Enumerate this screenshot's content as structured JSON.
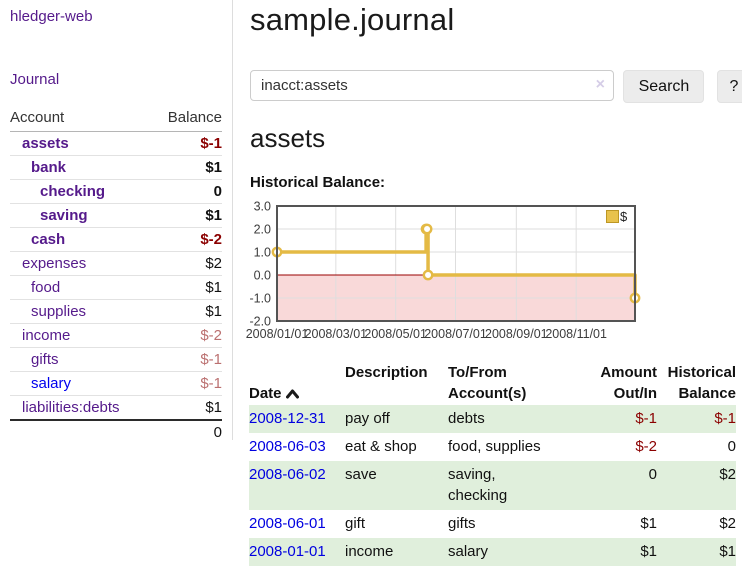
{
  "sidebar": {
    "brand": "hledger-web",
    "nav": {
      "journal": "Journal"
    },
    "accounts": {
      "headers": {
        "account": "Account",
        "balance": "Balance"
      },
      "rows": [
        {
          "name": "assets",
          "indent": 1,
          "bold": true,
          "balance": "$-1",
          "balance_style": "neg-strong",
          "link_style": "visited"
        },
        {
          "name": "bank",
          "indent": 2,
          "bold": true,
          "balance": "$1",
          "balance_style": "plain",
          "link_style": "visited"
        },
        {
          "name": "checking",
          "indent": 3,
          "bold": true,
          "balance": "0",
          "balance_style": "plain",
          "link_style": "visited"
        },
        {
          "name": "saving",
          "indent": 3,
          "bold": true,
          "balance": "$1",
          "balance_style": "plain",
          "link_style": "visited"
        },
        {
          "name": "cash",
          "indent": 2,
          "bold": true,
          "balance": "$-2",
          "balance_style": "neg-strong",
          "link_style": "visited"
        },
        {
          "name": "expenses",
          "indent": 1,
          "bold": false,
          "balance": "$2",
          "balance_style": "plain",
          "link_style": "visited"
        },
        {
          "name": "food",
          "indent": 2,
          "bold": false,
          "balance": "$1",
          "balance_style": "plain",
          "link_style": "visited"
        },
        {
          "name": "supplies",
          "indent": 2,
          "bold": false,
          "balance": "$1",
          "balance_style": "plain",
          "link_style": "visited"
        },
        {
          "name": "income",
          "indent": 1,
          "bold": false,
          "balance": "$-2",
          "balance_style": "neg-soft",
          "link_style": "visited"
        },
        {
          "name": "gifts",
          "indent": 2,
          "bold": false,
          "balance": "$-1",
          "balance_style": "neg-soft",
          "link_style": "visited"
        },
        {
          "name": "salary",
          "indent": 2,
          "bold": false,
          "balance": "$-1",
          "balance_style": "neg-soft",
          "link_style": "unvisited"
        },
        {
          "name": "liabilities:debts",
          "indent": 1,
          "bold": false,
          "balance": "$1",
          "balance_style": "plain",
          "link_style": "visited"
        }
      ],
      "total": "0"
    }
  },
  "main": {
    "title": "sample.journal",
    "search": {
      "value": "inacct:assets",
      "clear_icon": "×",
      "button": "Search",
      "help_button": "?"
    },
    "account_heading": "assets",
    "chart_heading": "Historical Balance:",
    "register": {
      "headers": {
        "date": "Date",
        "description": "Description",
        "tofrom": "To/From\nAccount(s)",
        "amount": "Amount\nOut/In",
        "balance": "Historical\nBalance"
      },
      "sort_icon": "caret-up",
      "rows": [
        {
          "date": "2008-12-31",
          "description": "pay off",
          "accounts": "debts",
          "amount": "$-1",
          "amount_style": "neg",
          "balance": "$-1",
          "balance_style": "neg",
          "stripe": true
        },
        {
          "date": "2008-06-03",
          "description": "eat & shop",
          "accounts": "food, supplies",
          "amount": "$-2",
          "amount_style": "neg",
          "balance": "0",
          "balance_style": "plain",
          "stripe": false
        },
        {
          "date": "2008-06-02",
          "description": "save",
          "accounts": "saving,\nchecking",
          "amount": "0",
          "amount_style": "plain",
          "balance": "$2",
          "balance_style": "plain",
          "stripe": true
        },
        {
          "date": "2008-06-01",
          "description": "gift",
          "accounts": "gifts",
          "amount": "$1",
          "amount_style": "plain",
          "balance": "$2",
          "balance_style": "plain",
          "stripe": false
        },
        {
          "date": "2008-01-01",
          "description": "income",
          "accounts": "salary",
          "amount": "$1",
          "amount_style": "plain",
          "balance": "$1",
          "balance_style": "plain",
          "stripe": true
        }
      ]
    }
  },
  "chart_data": {
    "type": "line",
    "title": "Historical Balance",
    "step": true,
    "x_range": [
      "2008/01/01",
      "2008/12/31"
    ],
    "ylim": [
      -2,
      3
    ],
    "yticks": [
      "3.0",
      "2.0",
      "1.0",
      "0.0",
      "-1.0",
      "-2.0"
    ],
    "xticks": [
      "2008/01/01",
      "2008/03/01",
      "2008/05/01",
      "2008/07/01",
      "2008/09/01",
      "2008/11/01"
    ],
    "series": [
      {
        "name": "$",
        "color": "#e4ba45",
        "points": [
          [
            "2008-01-01",
            1
          ],
          [
            "2008-06-01",
            2
          ],
          [
            "2008-06-03",
            0
          ],
          [
            "2008-12-31",
            -1
          ]
        ]
      }
    ],
    "markers": [
      [
        "2008-01-01",
        1
      ],
      [
        "2008-06-01",
        2
      ],
      [
        "2008-06-02",
        2
      ],
      [
        "2008-06-03",
        0
      ],
      [
        "2008-12-31",
        -1
      ]
    ],
    "legend_position": "top-right",
    "grid": true,
    "grid_color": "#dedede",
    "negative_fill": "#f9d9d9",
    "zero_line_color": "#990000",
    "border_color": "#545454"
  },
  "colors": {
    "link_visited": "#551a8b",
    "link_unvisited": "#0000ee",
    "negative_strong": "#8b0000",
    "negative_soft": "#bb7070",
    "row_stripe": "#e0efdc",
    "series_gold": "#e4ba45"
  }
}
